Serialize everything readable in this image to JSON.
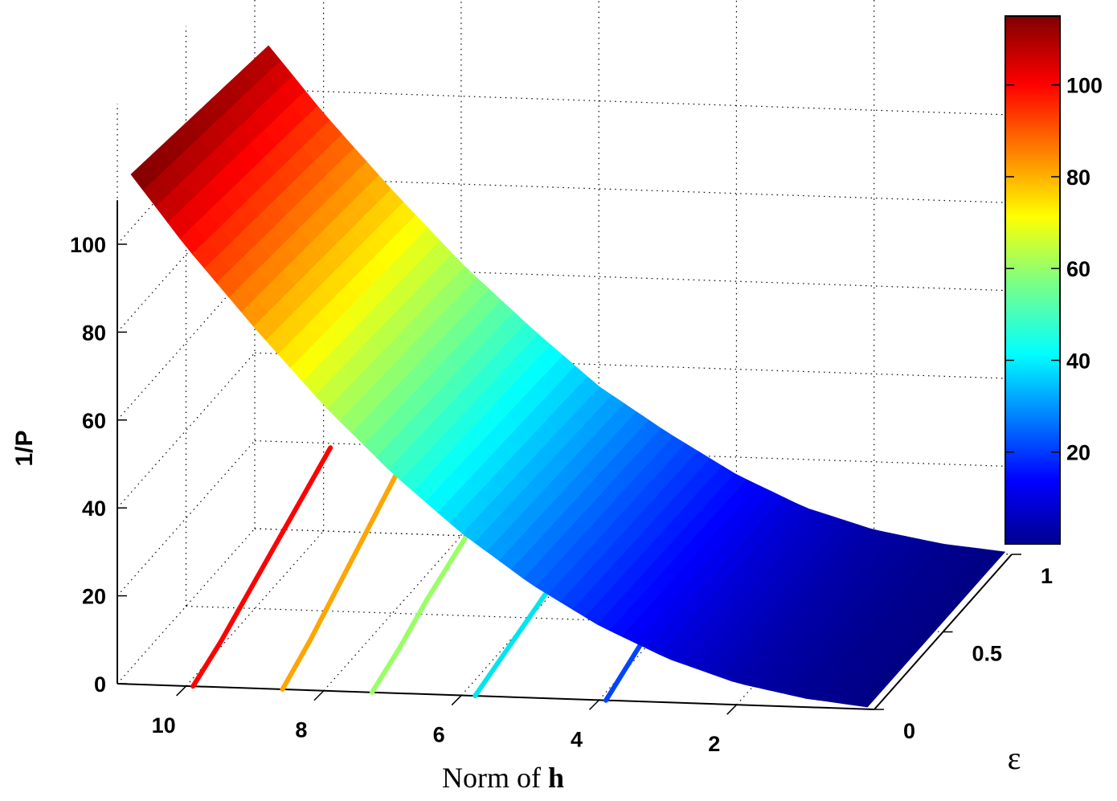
{
  "chart_data": {
    "type": "surface3d",
    "title": "",
    "xlabel_prefix": "Norm of ",
    "xlabel_bold": "h",
    "ylabel": "ε",
    "zlabel": "1/P",
    "x_ticks": [
      "10",
      "8",
      "6",
      "4",
      "2"
    ],
    "y_ticks": [
      "0",
      "0.5",
      "1"
    ],
    "z_ticks": [
      "0",
      "20",
      "40",
      "60",
      "80",
      "100"
    ],
    "colorbar_ticks": [
      "20",
      "40",
      "60",
      "80",
      "100"
    ],
    "xlim": [
      11,
      0
    ],
    "ylim": [
      0,
      1
    ],
    "zlim": [
      0,
      110
    ],
    "colormap": "jet",
    "clim": [
      0,
      115
    ],
    "grid": true,
    "surface": {
      "x": [
        10.8,
        10,
        9,
        8,
        7,
        6,
        5,
        4,
        3,
        2,
        1,
        0.1
      ],
      "eps": [
        0,
        0.1,
        0.2,
        0.3,
        0.4,
        0.5,
        0.6,
        0.7,
        0.8,
        0.9,
        1.0
      ],
      "z_edge_eps0": [
        116,
        100,
        82,
        65,
        50,
        37,
        26,
        17,
        10,
        5,
        2,
        0.5
      ],
      "z_edge_eps1": [
        110,
        95,
        78,
        62,
        48,
        35,
        25,
        16,
        9,
        4.5,
        1.8,
        0.5
      ]
    },
    "curves": [
      {
        "x": 9.9,
        "color": "#ff0000",
        "eps": [
          0,
          0.2,
          0.4,
          0.6,
          0.8,
          1.0
        ],
        "z": [
          0,
          3,
          7,
          11,
          15,
          19
        ]
      },
      {
        "x": 8.6,
        "color": "#ffa500",
        "eps": [
          0,
          0.2,
          0.4,
          0.6,
          0.8,
          1.0
        ],
        "z": [
          0,
          4,
          9,
          14,
          19,
          24
        ]
      },
      {
        "x": 7.3,
        "color": "#99ff66",
        "eps": [
          0,
          0.2,
          0.4,
          0.6,
          0.8,
          1.0
        ],
        "z": [
          0,
          3,
          7,
          10,
          13,
          16
        ]
      },
      {
        "x": 5.8,
        "color": "#00e5ee",
        "eps": [
          0,
          0.2,
          0.4,
          0.6,
          0.8,
          1.0
        ],
        "z": [
          0,
          2,
          4,
          6,
          8,
          9.5
        ]
      },
      {
        "x": 3.9,
        "color": "#0044ff",
        "eps": [
          0,
          0.1,
          0.2,
          0.3,
          0.4,
          0.5
        ],
        "z": [
          0,
          1.5,
          3,
          4.5,
          6,
          7
        ]
      }
    ]
  }
}
